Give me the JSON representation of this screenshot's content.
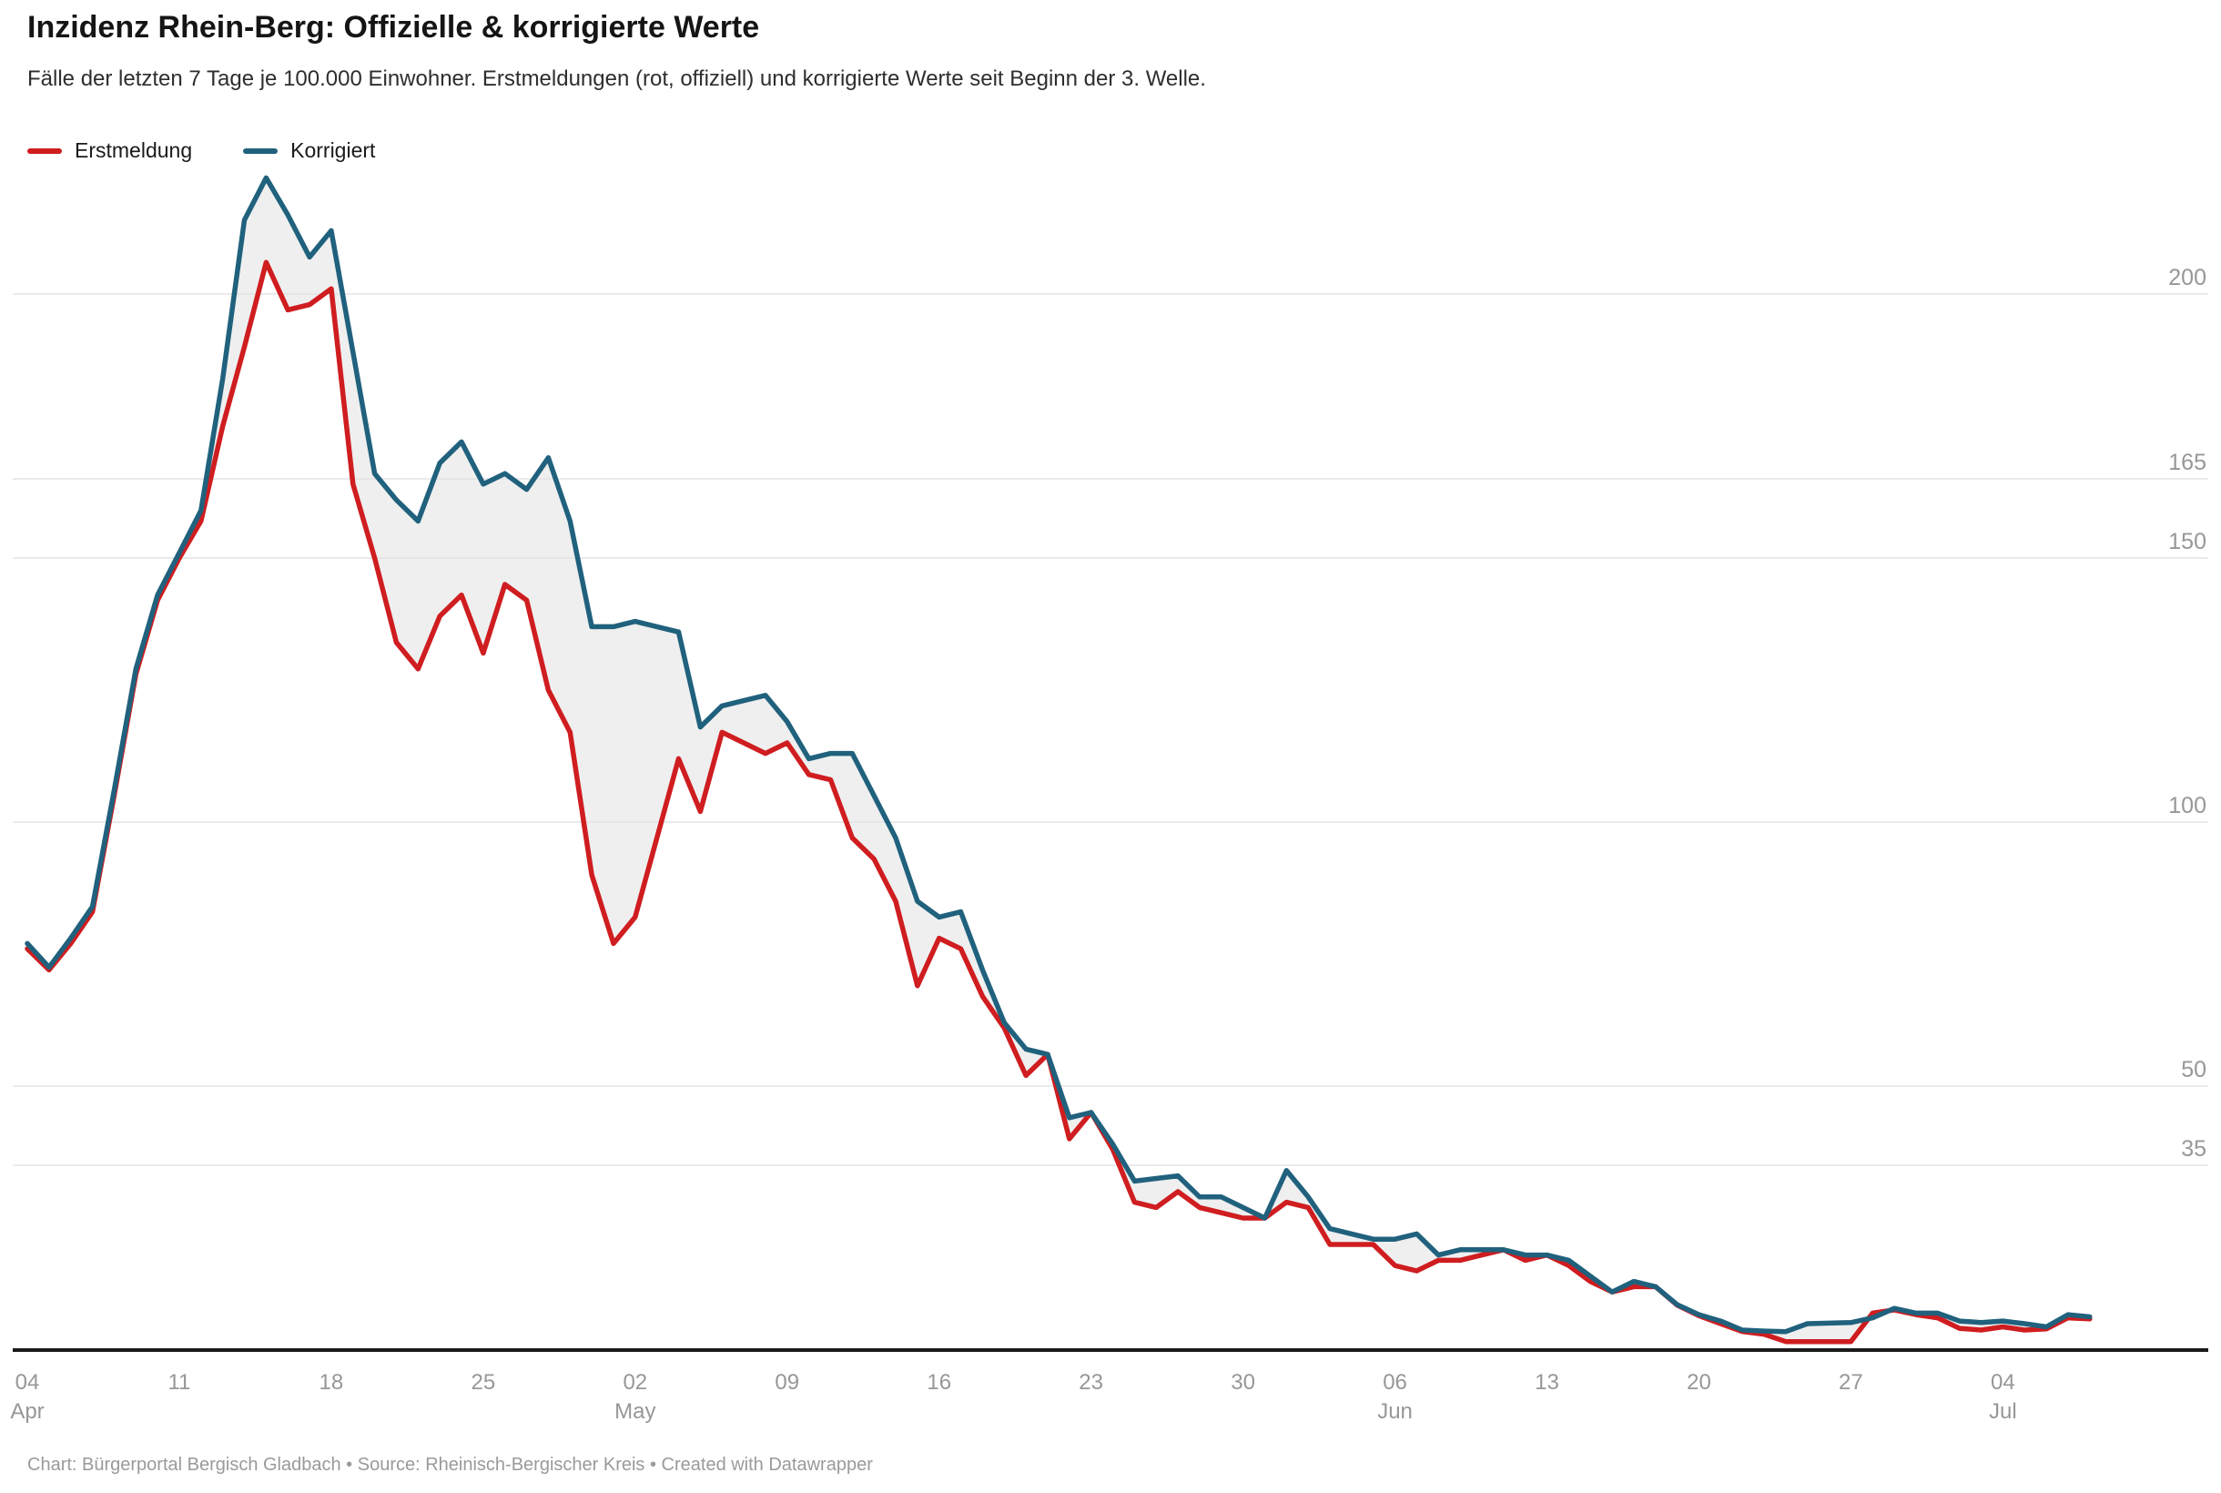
{
  "header": {
    "title": "Inzidenz Rhein-Berg: Offizielle & korrigierte Werte",
    "subtitle": "Fälle der letzten 7 Tage je 100.000 Einwohner. Erstmeldungen (rot, offiziell) und korrigierte Werte seit Beginn der 3. Welle."
  },
  "footer": {
    "text": "Chart: Bürgerportal Bergisch Gladbach • Source: Rheinisch-Bergischer Kreis • Created with Datawrapper"
  },
  "colors": {
    "band": "#efefef",
    "grid": "#e3e3e3",
    "axis": "#1a1a1a",
    "tick_text": "#979797",
    "background": "#ffffff"
  },
  "chart_data": {
    "type": "line",
    "title": "Inzidenz Rhein-Berg: Offizielle & korrigierte Werte",
    "ylabel": "",
    "xlabel": "",
    "ylim": [
      0,
      232
    ],
    "grid": true,
    "legend_position": "top-left",
    "band_between_series": true,
    "y_ticks": [
      35,
      50,
      100,
      150,
      165,
      200
    ],
    "x_ticks": [
      {
        "i": 0,
        "day": "04",
        "month": "Apr"
      },
      {
        "i": 7,
        "day": "11"
      },
      {
        "i": 14,
        "day": "18"
      },
      {
        "i": 21,
        "day": "25"
      },
      {
        "i": 28,
        "day": "02",
        "month": "May"
      },
      {
        "i": 35,
        "day": "09"
      },
      {
        "i": 42,
        "day": "16"
      },
      {
        "i": 49,
        "day": "23"
      },
      {
        "i": 56,
        "day": "30"
      },
      {
        "i": 63,
        "day": "06",
        "month": "Jun"
      },
      {
        "i": 70,
        "day": "13"
      },
      {
        "i": 77,
        "day": "20"
      },
      {
        "i": 84,
        "day": "27"
      },
      {
        "i": 91,
        "day": "04",
        "month": "Jul"
      }
    ],
    "x": [
      "04 Apr",
      "05 Apr",
      "06 Apr",
      "07 Apr",
      "08 Apr",
      "09 Apr",
      "10 Apr",
      "11 Apr",
      "12 Apr",
      "13 Apr",
      "14 Apr",
      "15 Apr",
      "16 Apr",
      "17 Apr",
      "18 Apr",
      "19 Apr",
      "20 Apr",
      "21 Apr",
      "22 Apr",
      "23 Apr",
      "24 Apr",
      "25 Apr",
      "26 Apr",
      "27 Apr",
      "28 Apr",
      "29 Apr",
      "30 Apr",
      "01 May",
      "02 May",
      "03 May",
      "04 May",
      "05 May",
      "06 May",
      "07 May",
      "08 May",
      "09 May",
      "10 May",
      "11 May",
      "12 May",
      "13 May",
      "14 May",
      "15 May",
      "16 May",
      "17 May",
      "18 May",
      "19 May",
      "20 May",
      "21 May",
      "22 May",
      "23 May",
      "24 May",
      "25 May",
      "26 May",
      "27 May",
      "28 May",
      "29 May",
      "30 May",
      "31 May",
      "01 Jun",
      "02 Jun",
      "03 Jun",
      "04 Jun",
      "05 Jun",
      "06 Jun",
      "07 Jun",
      "08 Jun",
      "09 Jun",
      "10 Jun",
      "11 Jun",
      "12 Jun",
      "13 Jun",
      "14 Jun",
      "15 Jun",
      "16 Jun",
      "17 Jun",
      "18 Jun",
      "19 Jun",
      "20 Jun",
      "21 Jun",
      "22 Jun",
      "23 Jun",
      "24 Jun",
      "25 Jun",
      "26 Jun",
      "27 Jun",
      "28 Jun",
      "29 Jun",
      "30 Jun",
      "01 Jul",
      "02 Jul",
      "03 Jul",
      "04 Jul",
      "05 Jul",
      "06 Jul",
      "07 Jul",
      "08 Jul"
    ],
    "series": [
      {
        "name": "Erstmeldung",
        "color": "#cf1d20",
        "values": [
          76,
          72,
          77,
          83,
          105,
          128,
          142,
          150,
          157,
          175,
          190,
          206,
          197,
          198,
          201,
          164,
          150,
          134,
          129,
          139,
          143,
          132,
          145,
          142,
          125,
          117,
          90,
          77,
          82,
          97,
          112,
          102,
          117,
          115,
          113,
          115,
          109,
          108,
          97,
          93,
          85,
          69,
          78,
          76,
          67,
          61,
          52,
          56,
          40,
          45,
          38,
          28,
          27,
          30,
          27,
          26,
          25,
          25,
          28,
          27,
          20,
          20,
          20,
          16,
          15,
          17,
          17,
          18,
          19,
          17,
          18,
          16,
          13,
          11,
          12,
          12,
          8.5,
          6.5,
          5,
          3.5,
          3,
          1.6,
          1.6,
          1.6,
          1.6,
          7,
          7.6,
          6.7,
          6.1,
          4.1,
          3.8,
          4.4,
          3.8,
          4,
          6.1,
          5.9
        ]
      },
      {
        "name": "Korrigiert",
        "color": "#20617d",
        "values": [
          77,
          72.5,
          78,
          84,
          106,
          129,
          143,
          151,
          159,
          184,
          214,
          222,
          215,
          207,
          212,
          189,
          166,
          161,
          157,
          168,
          172,
          164,
          166,
          163,
          169,
          157,
          137,
          137,
          138,
          137,
          136,
          118,
          122,
          123,
          124,
          119,
          112,
          113,
          113,
          105,
          97,
          85,
          82,
          83,
          72,
          62,
          57,
          56,
          44,
          45,
          39,
          32,
          32.5,
          33,
          29,
          29,
          27,
          25,
          34,
          29,
          23,
          22,
          21,
          21,
          22,
          18,
          19,
          19,
          19,
          18,
          18,
          17,
          14,
          11,
          13,
          12,
          8.6,
          6.7,
          5.5,
          3.8,
          3.6,
          3.5,
          5,
          5.1,
          5.2,
          6.1,
          7.9,
          7,
          7,
          5.5,
          5.2,
          5.5,
          5,
          4.4,
          6.7,
          6.3
        ]
      }
    ]
  }
}
